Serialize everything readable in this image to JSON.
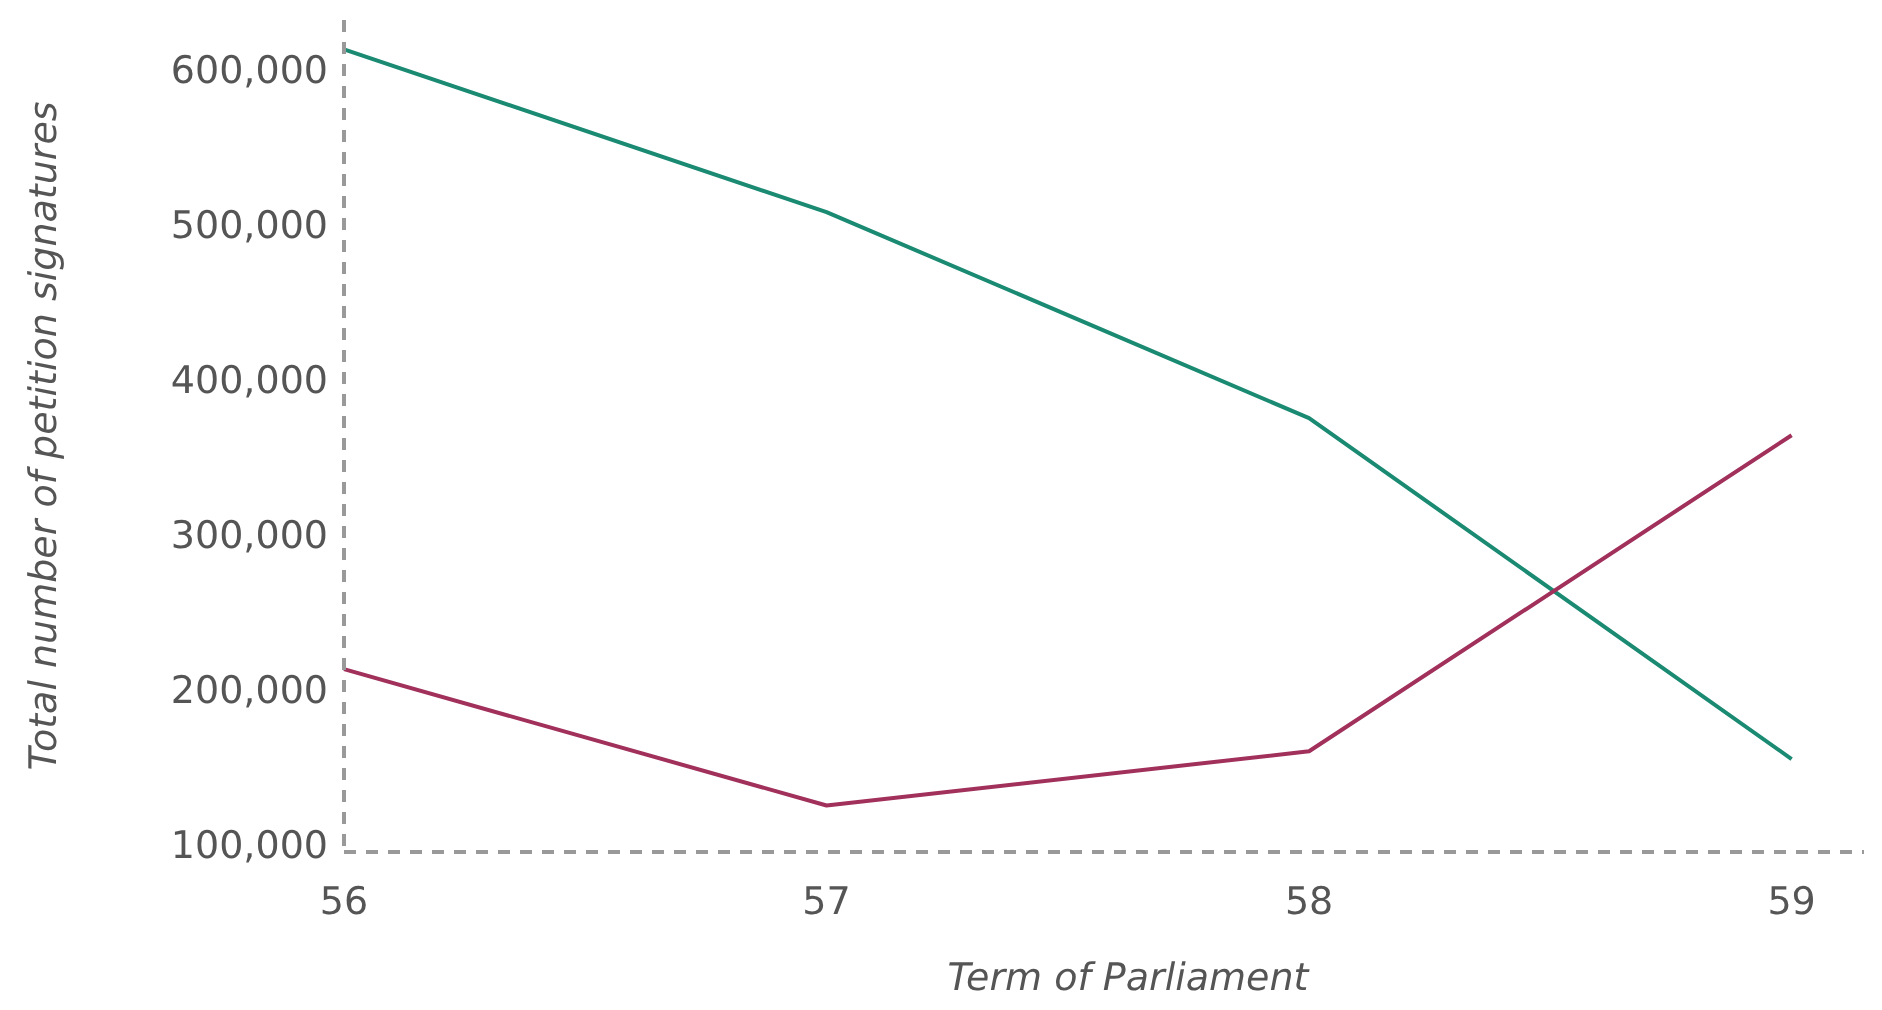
{
  "chart_data": {
    "type": "line",
    "xlabel": "Term of Parliament",
    "ylabel": "Total number of petition signatures",
    "x": [
      56,
      57,
      58,
      59
    ],
    "series": [
      {
        "color": "#1b8a72",
        "values": [
          613000,
          508000,
          375000,
          155000
        ]
      },
      {
        "color": "#a1305b",
        "values": [
          213000,
          125000,
          160000,
          364000
        ]
      }
    ],
    "xlim": [
      56,
      59.15
    ],
    "xticks": [
      56,
      57,
      58,
      59
    ],
    "ylim": [
      95000,
      632000
    ],
    "yticks": [
      {
        "value": 100000,
        "label": "100,000"
      },
      {
        "value": 200000,
        "label": "200,000"
      },
      {
        "value": 300000,
        "label": "300,000"
      },
      {
        "value": 400000,
        "label": "400,000"
      },
      {
        "value": 500000,
        "label": "500,000"
      },
      {
        "value": 600000,
        "label": "600,000"
      }
    ],
    "grid": false,
    "marker": "none",
    "line_style": "solid"
  }
}
